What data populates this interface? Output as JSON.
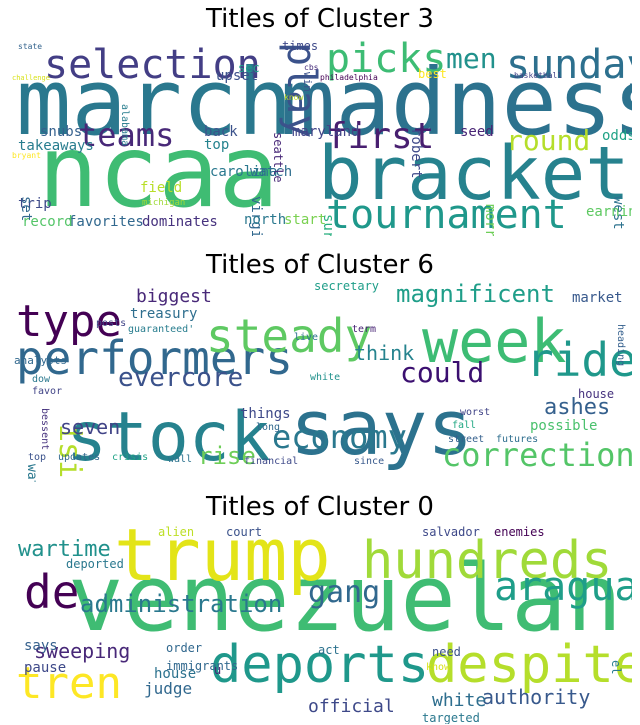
{
  "chart_data": [
    {
      "type": "wordcloud",
      "title": "Titles of Cluster 3",
      "words": [
        {
          "text": "march",
          "weight": 0.95,
          "color": "#2a788e"
        },
        {
          "text": "madness",
          "weight": 0.95,
          "color": "#2c728e"
        },
        {
          "text": "ncaa",
          "weight": 1.0,
          "color": "#3fbc73"
        },
        {
          "text": "bracket",
          "weight": 0.9,
          "color": "#26828e"
        },
        {
          "text": "tournament",
          "weight": 0.6,
          "color": "#1f988b"
        },
        {
          "text": "selection",
          "weight": 0.5,
          "color": "#433e85"
        },
        {
          "text": "picks",
          "weight": 0.5,
          "color": "#3dbc74"
        },
        {
          "text": "sunday",
          "weight": 0.5,
          "color": "#2d708e"
        },
        {
          "text": "play",
          "weight": 0.5,
          "color": "#3b528b"
        },
        {
          "text": "men",
          "weight": 0.4,
          "color": "#21918c"
        },
        {
          "text": "first",
          "weight": 0.45,
          "color": "#481f70"
        },
        {
          "text": "teams",
          "weight": 0.4,
          "color": "#482878"
        },
        {
          "text": "round",
          "weight": 0.35,
          "color": "#b5de2b"
        },
        {
          "text": "robert",
          "weight": 0.15,
          "color": "#3e4989"
        },
        {
          "text": "morris",
          "weight": 0.15,
          "color": "#6ece58"
        },
        {
          "text": "virginia",
          "weight": 0.15,
          "color": "#31688e"
        },
        {
          "text": "carolina",
          "weight": 0.15,
          "color": "#2a788e"
        },
        {
          "text": "maryland",
          "weight": 0.15,
          "color": "#414487"
        },
        {
          "text": "takeaways",
          "weight": 0.15,
          "color": "#287d8e"
        },
        {
          "text": "snubs",
          "weight": 0.15,
          "color": "#35608d"
        },
        {
          "text": "seed",
          "weight": 0.15,
          "color": "#482475"
        },
        {
          "text": "odds",
          "weight": 0.15,
          "color": "#20a386"
        },
        {
          "text": "west",
          "weight": 0.15,
          "color": "#2c728e"
        },
        {
          "text": "earning",
          "weight": 0.15,
          "color": "#5ec962"
        },
        {
          "text": "start",
          "weight": 0.15,
          "color": "#7ad151"
        },
        {
          "text": "surprises",
          "weight": 0.15,
          "color": "#29af7f"
        },
        {
          "text": "north",
          "weight": 0.15,
          "color": "#2a788e"
        },
        {
          "text": "dominates",
          "weight": 0.15,
          "color": "#46327e"
        },
        {
          "text": "favorites",
          "weight": 0.15,
          "color": "#31688e"
        },
        {
          "text": "record",
          "weight": 0.15,
          "color": "#54c568"
        },
        {
          "text": "trip",
          "weight": 0.15,
          "color": "#3e4a89"
        },
        {
          "text": "field",
          "weight": 0.15,
          "color": "#b8de29"
        },
        {
          "text": "watch",
          "weight": 0.15,
          "color": "#2e6e8e"
        },
        {
          "text": "michigan",
          "weight": 0.08,
          "color": "#a0da39"
        },
        {
          "text": "set",
          "weight": 0.1,
          "color": "#31688e"
        },
        {
          "text": "bryant",
          "weight": 0.08,
          "color": "#fde725"
        },
        {
          "text": "back",
          "weight": 0.15,
          "color": "#3b528b"
        },
        {
          "text": "top",
          "weight": 0.15,
          "color": "#25838e"
        },
        {
          "text": "alabama",
          "weight": 0.1,
          "color": "#287d8e"
        },
        {
          "text": "upset",
          "weight": 0.15,
          "color": "#3b528b"
        },
        {
          "text": "sec",
          "weight": 0.12,
          "color": "#1f9e89"
        },
        {
          "text": "times",
          "weight": 0.12,
          "color": "#3e4989"
        },
        {
          "text": "cbs",
          "weight": 0.08,
          "color": "#472d7b"
        },
        {
          "text": "win",
          "weight": 0.1,
          "color": "#3b528b"
        },
        {
          "text": "seattle",
          "weight": 0.12,
          "color": "#482878"
        },
        {
          "text": "philadelphia",
          "weight": 0.08,
          "color": "#440154"
        },
        {
          "text": "best",
          "weight": 0.12,
          "color": "#fde725"
        },
        {
          "text": "basketball",
          "weight": 0.08,
          "color": "#414487"
        },
        {
          "text": "know",
          "weight": 0.08,
          "color": "#bddf26"
        },
        {
          "text": "state",
          "weight": 0.08,
          "color": "#33638d"
        },
        {
          "text": "challenge",
          "weight": 0.07,
          "color": "#d8e219"
        }
      ]
    },
    {
      "type": "wordcloud",
      "title": "Titles of Cluster 6",
      "words": [
        {
          "text": "stock",
          "weight": 1.0,
          "color": "#26828e"
        },
        {
          "text": "says",
          "weight": 0.9,
          "color": "#2c728e"
        },
        {
          "text": "week",
          "weight": 0.85,
          "color": "#3dbc74"
        },
        {
          "text": "performers",
          "weight": 0.65,
          "color": "#31688e"
        },
        {
          "text": "steady",
          "weight": 0.65,
          "color": "#5ec962"
        },
        {
          "text": "type",
          "weight": 0.55,
          "color": "#440154"
        },
        {
          "text": "economy",
          "weight": 0.5,
          "color": "#2a788e"
        },
        {
          "text": "correction",
          "weight": 0.45,
          "color": "#54c568"
        },
        {
          "text": "ride",
          "weight": 0.5,
          "color": "#1f988b"
        },
        {
          "text": "could",
          "weight": 0.35,
          "color": "#3b0f70"
        },
        {
          "text": "evercore",
          "weight": 0.35,
          "color": "#3b528b"
        },
        {
          "text": "magnificent",
          "weight": 0.3,
          "color": "#1f9e89"
        },
        {
          "text": "ashes",
          "weight": 0.3,
          "color": "#35608d"
        },
        {
          "text": "isi",
          "weight": 0.35,
          "color": "#b5de2b"
        },
        {
          "text": "think",
          "weight": 0.25,
          "color": "#25838e"
        },
        {
          "text": "rise",
          "weight": 0.3,
          "color": "#6ece58"
        },
        {
          "text": "seven",
          "weight": 0.25,
          "color": "#414487"
        },
        {
          "text": "possible",
          "weight": 0.2,
          "color": "#4ac16d"
        },
        {
          "text": "biggest",
          "weight": 0.2,
          "color": "#482878"
        },
        {
          "text": "treasury",
          "weight": 0.18,
          "color": "#2e6e8e"
        },
        {
          "text": "secretary",
          "weight": 0.15,
          "color": "#1f9e89"
        },
        {
          "text": "market",
          "weight": 0.15,
          "color": "#38598c"
        },
        {
          "text": "house",
          "weight": 0.13,
          "color": "#46327e"
        },
        {
          "text": "things",
          "weight": 0.15,
          "color": "#3e4989"
        },
        {
          "text": "watching",
          "weight": 0.13,
          "color": "#2a788e"
        },
        {
          "text": "analysts",
          "weight": 0.12,
          "color": "#31688e"
        },
        {
          "text": "posts",
          "weight": 0.1,
          "color": "#404688"
        },
        {
          "text": "guaranteed'",
          "weight": 0.1,
          "color": "#287d8e"
        },
        {
          "text": "term",
          "weight": 0.1,
          "color": "#482475"
        },
        {
          "text": "live",
          "weight": 0.1,
          "color": "#2c728e"
        },
        {
          "text": "heading",
          "weight": 0.1,
          "color": "#35608d"
        },
        {
          "text": "white",
          "weight": 0.1,
          "color": "#21918c"
        },
        {
          "text": "long",
          "weight": 0.1,
          "color": "#31688e"
        },
        {
          "text": "dow",
          "weight": 0.1,
          "color": "#2a788e"
        },
        {
          "text": "favor",
          "weight": 0.1,
          "color": "#414487"
        },
        {
          "text": "bessent",
          "weight": 0.1,
          "color": "#46327e"
        },
        {
          "text": "top",
          "weight": 0.1,
          "color": "#3b528b"
        },
        {
          "text": "updates",
          "weight": 0.1,
          "color": "#31688e"
        },
        {
          "text": "crisis",
          "weight": 0.1,
          "color": "#20a386"
        },
        {
          "text": "wall",
          "weight": 0.1,
          "color": "#2c728e"
        },
        {
          "text": "financial",
          "weight": 0.1,
          "color": "#3e4989"
        },
        {
          "text": "since",
          "weight": 0.1,
          "color": "#38598c"
        },
        {
          "text": "street",
          "weight": 0.1,
          "color": "#35608d"
        },
        {
          "text": "futures",
          "weight": 0.1,
          "color": "#2e6e8e"
        },
        {
          "text": "fall",
          "weight": 0.1,
          "color": "#22a884"
        },
        {
          "text": "worst",
          "weight": 0.1,
          "color": "#414487"
        }
      ]
    },
    {
      "type": "wordcloud",
      "title": "Titles of Cluster 0",
      "words": [
        {
          "text": "venezuelan",
          "weight": 1.0,
          "color": "#3fbc73"
        },
        {
          "text": "trump",
          "weight": 0.85,
          "color": "#e3e418"
        },
        {
          "text": "hundreds",
          "weight": 0.6,
          "color": "#a0da39"
        },
        {
          "text": "deports",
          "weight": 0.6,
          "color": "#1f988b"
        },
        {
          "text": "despite",
          "weight": 0.55,
          "color": "#b5de2b"
        },
        {
          "text": "aragua",
          "weight": 0.5,
          "color": "#1f9e89"
        },
        {
          "text": "de",
          "weight": 0.5,
          "color": "#440154"
        },
        {
          "text": "tren",
          "weight": 0.5,
          "color": "#fde725"
        },
        {
          "text": "gang",
          "weight": 0.4,
          "color": "#31688e"
        },
        {
          "text": "administration",
          "weight": 0.3,
          "color": "#2a788e"
        },
        {
          "text": "wartime",
          "weight": 0.25,
          "color": "#21918c"
        },
        {
          "text": "sweeping",
          "weight": 0.25,
          "color": "#482878"
        },
        {
          "text": "authority",
          "weight": 0.2,
          "color": "#38598c"
        },
        {
          "text": "white",
          "weight": 0.2,
          "color": "#2e6e8e"
        },
        {
          "text": "official",
          "weight": 0.2,
          "color": "#3e4989"
        },
        {
          "text": "judge",
          "weight": 0.18,
          "color": "#31688e"
        },
        {
          "text": "house",
          "weight": 0.18,
          "color": "#2c728e"
        },
        {
          "text": "pause",
          "weight": 0.18,
          "color": "#3e4989"
        },
        {
          "text": "says",
          "weight": 0.15,
          "color": "#35608d"
        },
        {
          "text": "court",
          "weight": 0.12,
          "color": "#3b528b"
        },
        {
          "text": "alien",
          "weight": 0.1,
          "color": "#bddf26"
        },
        {
          "text": "salvador",
          "weight": 0.1,
          "color": "#3e4989"
        },
        {
          "text": "enemies",
          "weight": 0.1,
          "color": "#440154"
        },
        {
          "text": "deported",
          "weight": 0.1,
          "color": "#2a788e"
        },
        {
          "text": "order",
          "weight": 0.1,
          "color": "#31688e"
        },
        {
          "text": "act",
          "weight": 0.1,
          "color": "#2c728e"
        },
        {
          "text": "need",
          "weight": 0.1,
          "color": "#3b528b"
        },
        {
          "text": "el",
          "weight": 0.1,
          "color": "#287d8e"
        },
        {
          "text": "know",
          "weight": 0.08,
          "color": "#d8e219"
        },
        {
          "text": "immigrants",
          "weight": 0.1,
          "color": "#31688e"
        },
        {
          "text": "u",
          "weight": 0.1,
          "color": "#482475"
        },
        {
          "text": "targeted",
          "weight": 0.1,
          "color": "#2a788e"
        }
      ]
    }
  ]
}
